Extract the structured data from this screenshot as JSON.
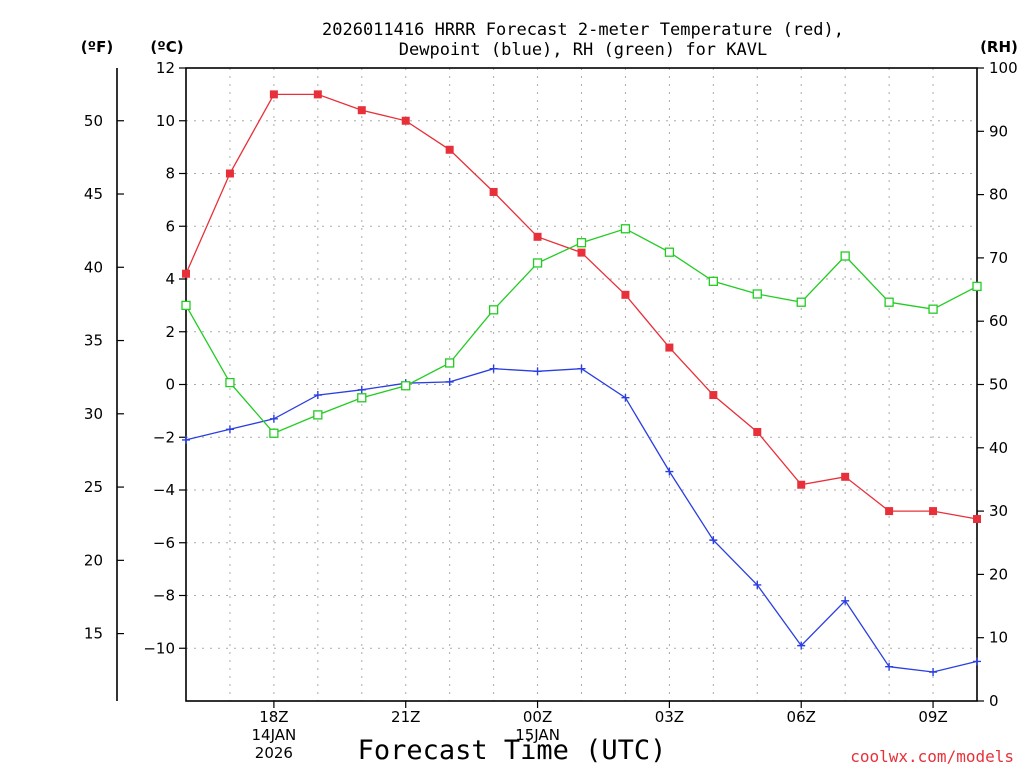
{
  "chart_data": {
    "type": "line",
    "title_line1": "2026011416 HRRR Forecast 2-meter Temperature (red),",
    "title_line2": "Dewpoint (blue), RH (green) for KAVL",
    "xlabel": "Forecast Time (UTC)",
    "credit": "coolwx.com/models",
    "left_unit_f": "(ºF)",
    "left_unit_c": "(ºC)",
    "right_unit": "(RH)",
    "hours": [
      16,
      17,
      18,
      19,
      20,
      21,
      22,
      23,
      24,
      25,
      26,
      27,
      28,
      29,
      30,
      31,
      32,
      33,
      34
    ],
    "x_ticks": [
      {
        "hour": 18,
        "lines": [
          "18Z",
          "14JAN",
          "2026"
        ]
      },
      {
        "hour": 21,
        "lines": [
          "21Z"
        ]
      },
      {
        "hour": 24,
        "lines": [
          "00Z",
          "15JAN"
        ]
      },
      {
        "hour": 27,
        "lines": [
          "03Z"
        ]
      },
      {
        "hour": 30,
        "lines": [
          "06Z"
        ]
      },
      {
        "hour": 33,
        "lines": [
          "09Z"
        ]
      }
    ],
    "xlim": [
      16,
      34
    ],
    "ylim_c": [
      -12,
      12
    ],
    "ylim_rh": [
      0,
      100
    ],
    "c_ticks": [
      "12",
      "10",
      "8",
      "6",
      "4",
      "2",
      "0",
      "−2",
      "−4",
      "−6",
      "−8",
      "−10"
    ],
    "c_tick_values": [
      12,
      10,
      8,
      6,
      4,
      2,
      0,
      -2,
      -4,
      -6,
      -8,
      -10
    ],
    "f_ticks": [
      "50",
      "45",
      "40",
      "35",
      "30",
      "25",
      "20",
      "15"
    ],
    "f_tick_values": [
      50,
      45,
      40,
      35,
      30,
      25,
      20,
      15
    ],
    "rh_ticks": [
      "100",
      "90",
      "80",
      "70",
      "60",
      "50",
      "40",
      "30",
      "20",
      "10",
      "0"
    ],
    "rh_tick_values": [
      100,
      90,
      80,
      70,
      60,
      50,
      40,
      30,
      20,
      10,
      0
    ],
    "series": [
      {
        "name": "Temperature",
        "unit": "C",
        "color": "#e8303a",
        "marker": "filled-square",
        "values": [
          4.2,
          8.0,
          11.0,
          11.0,
          10.4,
          10.0,
          8.9,
          7.3,
          5.6,
          5.0,
          3.4,
          1.4,
          -0.4,
          -1.8,
          -3.8,
          -3.5,
          -4.8,
          -4.8,
          -5.1
        ]
      },
      {
        "name": "Dewpoint",
        "unit": "C",
        "color": "#2b3fe0",
        "marker": "plus",
        "values": [
          -2.1,
          -1.7,
          -1.3,
          -0.4,
          -0.2,
          0.05,
          0.1,
          0.6,
          0.5,
          0.6,
          -0.5,
          -3.3,
          -5.9,
          -7.6,
          -9.9,
          -8.2,
          -10.7,
          -10.9,
          -10.5
        ]
      },
      {
        "name": "Relative Humidity",
        "unit": "%",
        "color": "#22cc22",
        "marker": "open-square",
        "values": [
          62.5,
          50.3,
          42.3,
          45.2,
          47.9,
          49.8,
          53.4,
          61.8,
          69.2,
          72.4,
          74.6,
          70.9,
          66.3,
          64.3,
          63.0,
          70.3,
          63.0,
          61.9,
          65.5
        ]
      }
    ]
  }
}
